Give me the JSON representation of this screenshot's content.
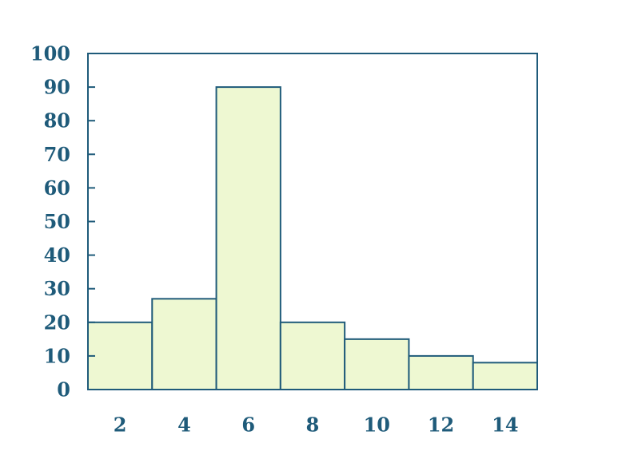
{
  "colors": {
    "background": "#ffffff",
    "bar_fill": "#eef8d2",
    "outline": "#1f5b7a",
    "text": "#1f5b7a"
  },
  "chart_data": {
    "type": "bar",
    "title": "",
    "xlabel": "",
    "ylabel": "",
    "categories": [
      "2",
      "4",
      "6",
      "8",
      "10",
      "12",
      "14"
    ],
    "values": [
      20,
      27,
      90,
      20,
      15,
      10,
      8
    ],
    "ylim": [
      0,
      100
    ],
    "yticks": [
      0,
      10,
      20,
      30,
      40,
      50,
      60,
      70,
      80,
      90,
      100
    ],
    "grid": false,
    "legend": "none",
    "bar_gap": false
  }
}
